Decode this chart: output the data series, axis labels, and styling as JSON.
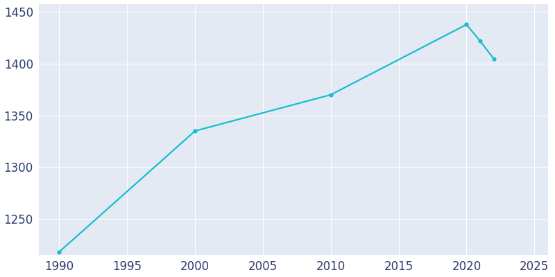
{
  "years": [
    1990,
    2000,
    2010,
    2020,
    2021,
    2022
  ],
  "population": [
    1218,
    1335,
    1370,
    1438,
    1422,
    1405
  ],
  "line_color": "#17BECF",
  "marker_color": "#17BECF",
  "fig_bg_color": "#FFFFFF",
  "plot_bg_color": "#E3EAF4",
  "grid_color": "#FFFFFF",
  "tick_label_color": "#2D3B6B",
  "xlim": [
    1988.5,
    2026
  ],
  "ylim": [
    1215,
    1458
  ],
  "xticks": [
    1990,
    1995,
    2000,
    2005,
    2010,
    2015,
    2020,
    2025
  ],
  "yticks": [
    1250,
    1300,
    1350,
    1400,
    1450
  ],
  "linewidth": 1.6,
  "markersize": 4.5,
  "tick_fontsize": 12
}
